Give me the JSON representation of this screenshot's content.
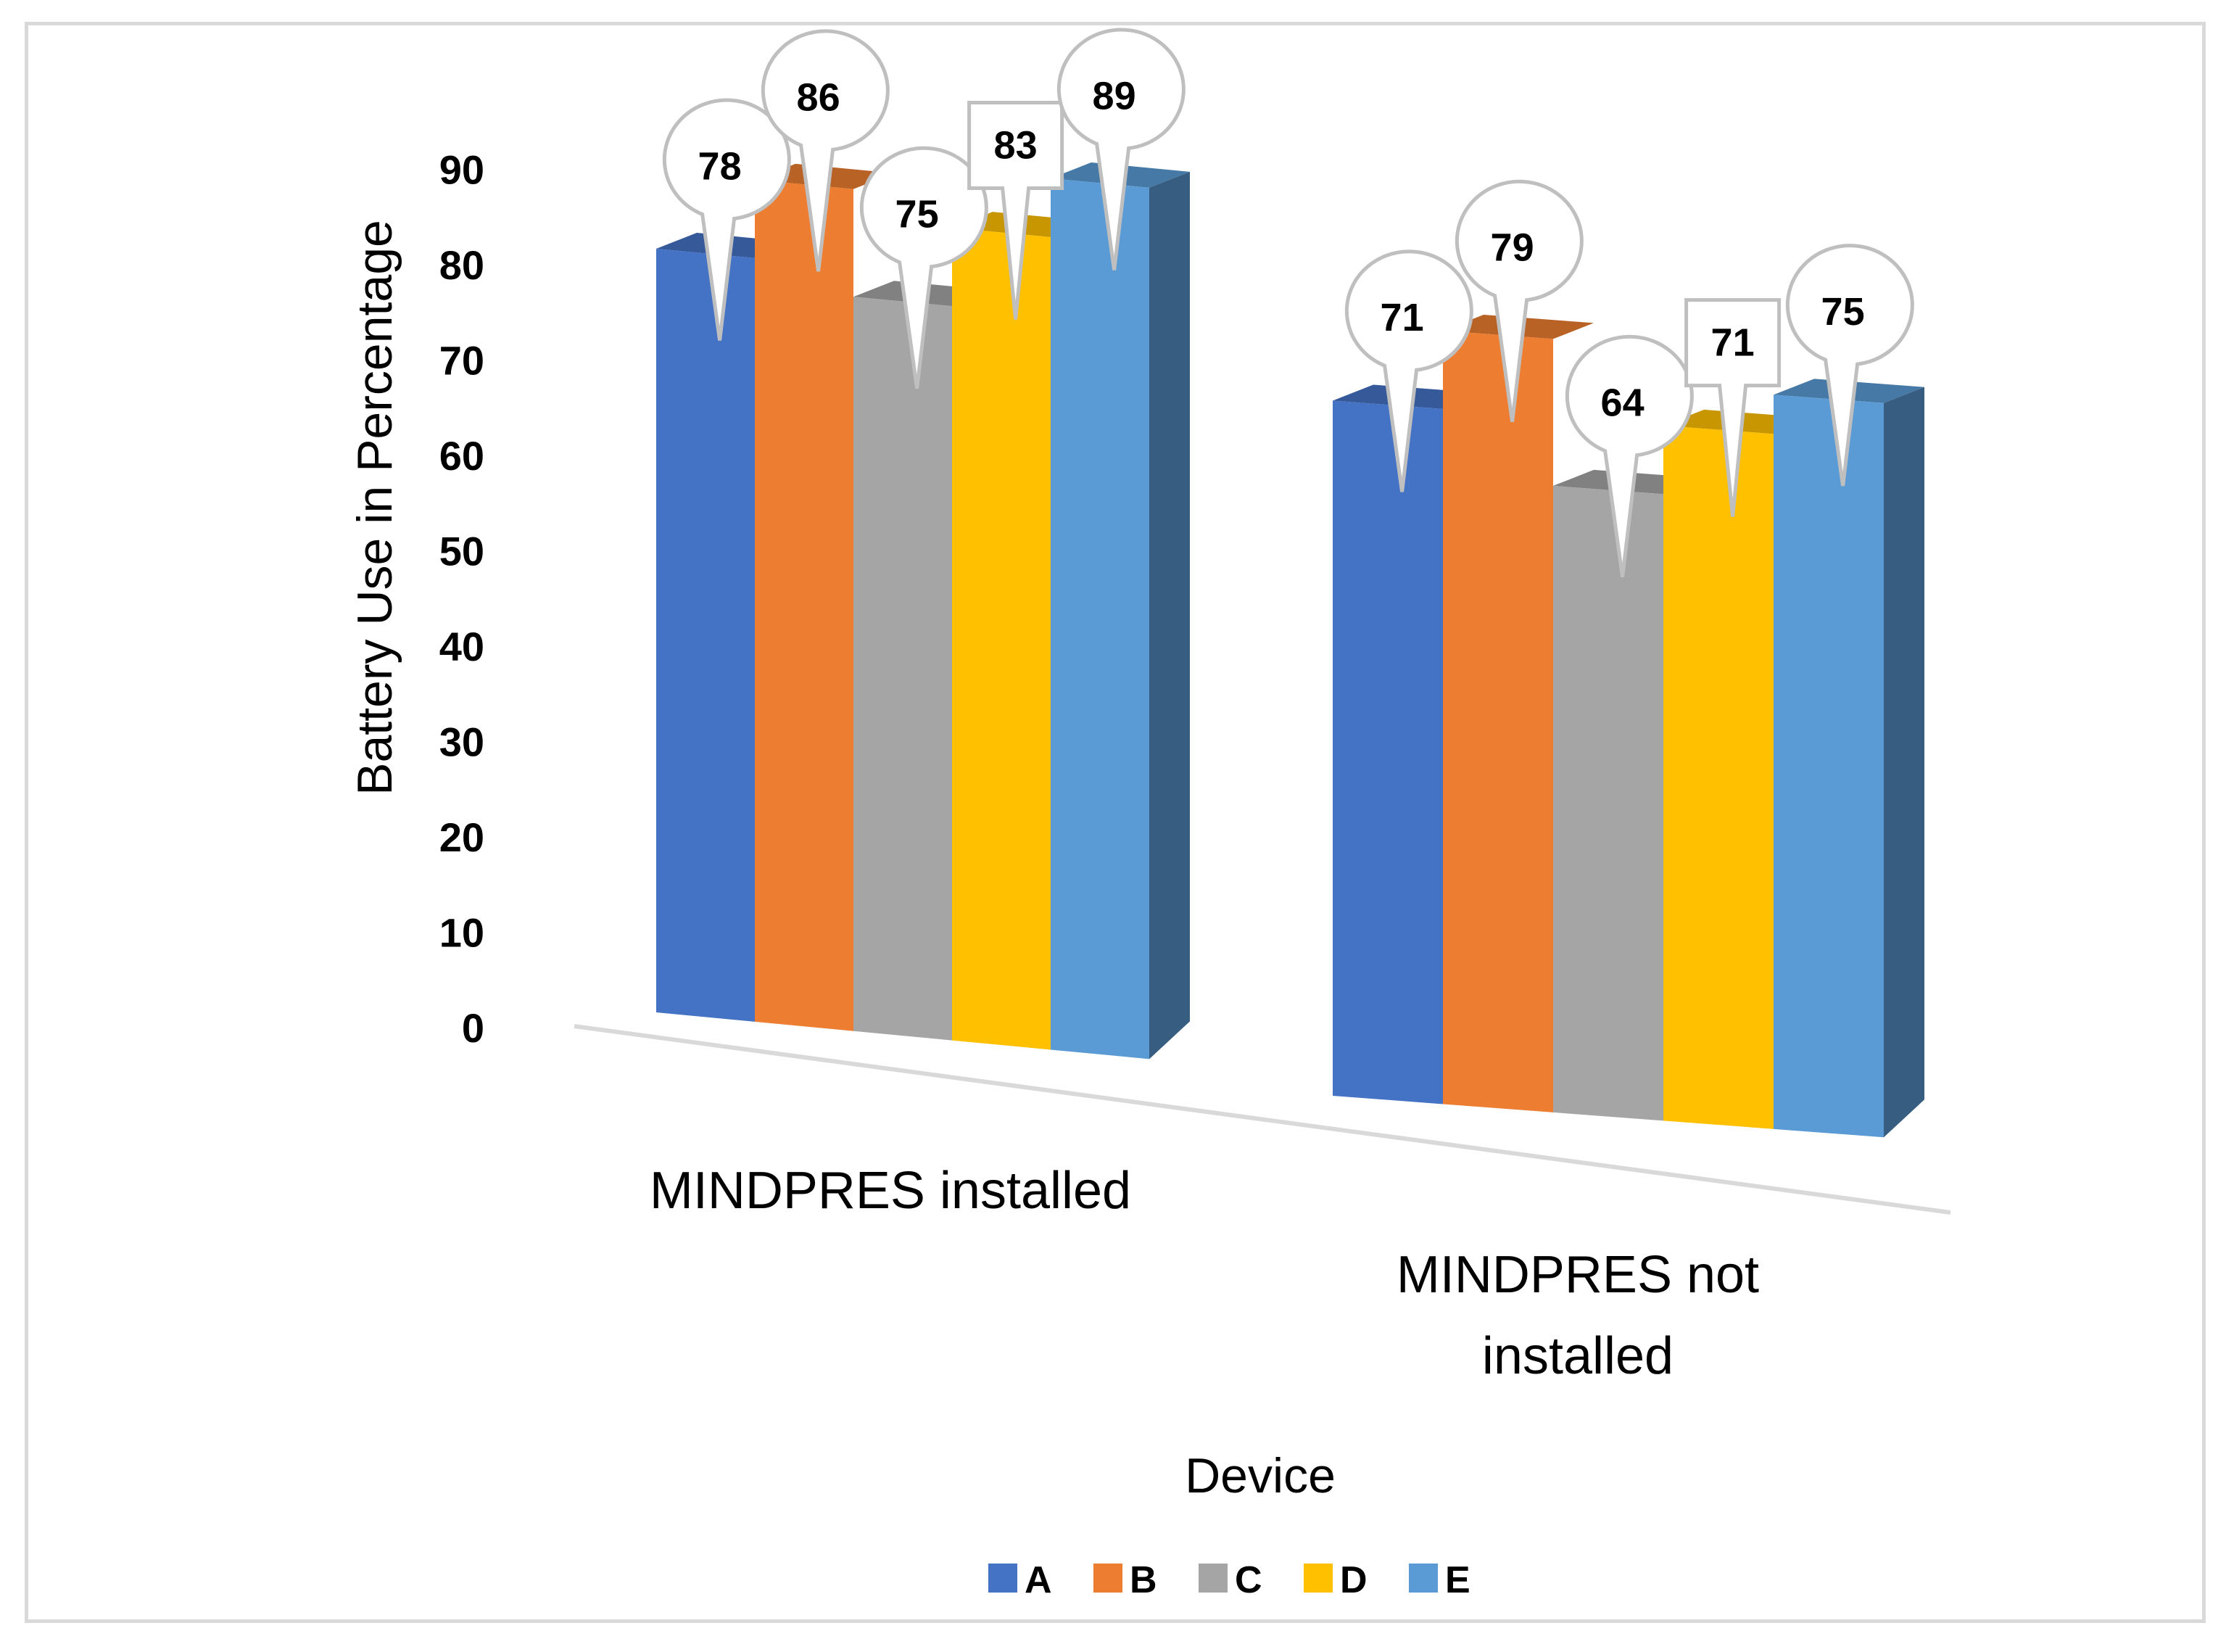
{
  "chart_data": {
    "type": "bar",
    "variant": "3d-clustered-column",
    "categories": [
      "MINDPRES installed",
      "MINDPRES not installed"
    ],
    "category_lines": [
      [
        "MINDPRES installed"
      ],
      [
        "MINDPRES not",
        "installed"
      ]
    ],
    "series": [
      {
        "name": "A",
        "values": [
          78,
          71
        ],
        "color": "#4472C4"
      },
      {
        "name": "B",
        "values": [
          86,
          79
        ],
        "color": "#ED7D31"
      },
      {
        "name": "C",
        "values": [
          75,
          64
        ],
        "color": "#A5A5A5"
      },
      {
        "name": "D",
        "values": [
          83,
          71
        ],
        "color": "#FFC000"
      },
      {
        "name": "E",
        "values": [
          89,
          75
        ],
        "color": "#5B9BD5"
      }
    ],
    "label_style": [
      "callout",
      "callout",
      "callout",
      "box",
      "callout"
    ],
    "title": "",
    "xlabel": "Device",
    "ylabel": "Battery Use in Percentage",
    "ylim": [
      0,
      90
    ],
    "yticks": [
      0,
      10,
      20,
      30,
      40,
      50,
      60,
      70,
      80,
      90
    ],
    "legend_position": "bottom",
    "grid": false
  }
}
